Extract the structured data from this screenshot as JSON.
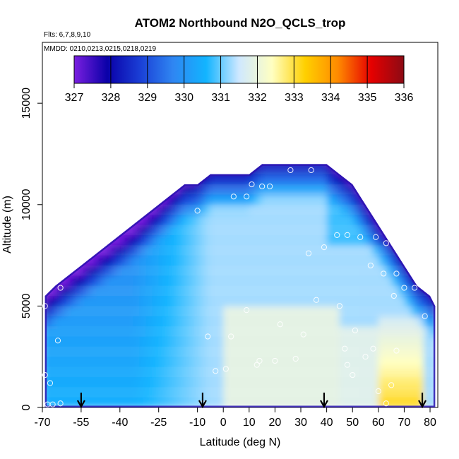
{
  "chart_data": {
    "type": "heatmap",
    "title": "ATOM2 Northbound N2O_QCLS_trop",
    "subtitle_flights": "Flts: 6,7,8,9,10",
    "subtitle_dates": "MMDD: 0210,0213,0215,0218,0219",
    "xlabel": "Latitude (deg N)",
    "ylabel": "Altitude (m)",
    "xlim": [
      -70,
      83
    ],
    "ylim": [
      0,
      18000
    ],
    "x_ticks": [
      -70,
      -55,
      -40,
      -25,
      -10,
      0,
      10,
      20,
      30,
      40,
      50,
      60,
      70,
      80
    ],
    "x_tick_labels": [
      "-70",
      "-55",
      "-40",
      "-25",
      "-10",
      "0",
      "10",
      "20",
      "30",
      "40",
      "50",
      "60",
      "70",
      "80"
    ],
    "y_ticks": [
      0,
      5000,
      10000,
      15000
    ],
    "y_tick_labels": [
      "0",
      "5000",
      "10000",
      "15000"
    ],
    "colorbar": {
      "min": 327,
      "max": 336,
      "tick_labels": [
        "327",
        "328",
        "329",
        "330",
        "331",
        "332",
        "333",
        "334",
        "335",
        "336"
      ],
      "colors": [
        "#7b1fe0",
        "#0a00a8",
        "#1a3fd6",
        "#2f86f2",
        "#12b4ff",
        "#cfe8ff",
        "#ffffc2",
        "#ffd000",
        "#ff8a00",
        "#e60000",
        "#8b0a14"
      ]
    },
    "altitude_envelope": [
      {
        "lat": -69,
        "top": 5500
      },
      {
        "lat": -65,
        "top": 6000
      },
      {
        "lat": -60,
        "top": 6500
      },
      {
        "lat": -55,
        "top": 7000
      },
      {
        "lat": -50,
        "top": 7500
      },
      {
        "lat": -45,
        "top": 8000
      },
      {
        "lat": -40,
        "top": 8500
      },
      {
        "lat": -35,
        "top": 9000
      },
      {
        "lat": -30,
        "top": 9500
      },
      {
        "lat": -25,
        "top": 10000
      },
      {
        "lat": -20,
        "top": 10500
      },
      {
        "lat": -15,
        "top": 11000
      },
      {
        "lat": -10,
        "top": 11000
      },
      {
        "lat": -5,
        "top": 11500
      },
      {
        "lat": 0,
        "top": 11500
      },
      {
        "lat": 5,
        "top": 11500
      },
      {
        "lat": 10,
        "top": 11500
      },
      {
        "lat": 15,
        "top": 12000
      },
      {
        "lat": 20,
        "top": 12000
      },
      {
        "lat": 25,
        "top": 12000
      },
      {
        "lat": 30,
        "top": 12000
      },
      {
        "lat": 35,
        "top": 12000
      },
      {
        "lat": 40,
        "top": 12000
      },
      {
        "lat": 45,
        "top": 11500
      },
      {
        "lat": 50,
        "top": 11000
      },
      {
        "lat": 55,
        "top": 10000
      },
      {
        "lat": 60,
        "top": 9000
      },
      {
        "lat": 65,
        "top": 8000
      },
      {
        "lat": 70,
        "top": 7000
      },
      {
        "lat": 75,
        "top": 6000
      },
      {
        "lat": 80,
        "top": 5500
      },
      {
        "lat": 82,
        "top": 5000
      }
    ],
    "observations": [
      {
        "lat": -69,
        "alt": 5000
      },
      {
        "lat": -69,
        "alt": 1600
      },
      {
        "lat": -67,
        "alt": 1200
      },
      {
        "lat": -68,
        "alt": 150
      },
      {
        "lat": -66,
        "alt": 150
      },
      {
        "lat": -63,
        "alt": 200
      },
      {
        "lat": -64,
        "alt": 3300
      },
      {
        "lat": -63,
        "alt": 5900
      },
      {
        "lat": -10,
        "alt": 9700
      },
      {
        "lat": -8,
        "alt": 200
      },
      {
        "lat": -6,
        "alt": 3500
      },
      {
        "lat": -3,
        "alt": 1800
      },
      {
        "lat": 1,
        "alt": 1900
      },
      {
        "lat": 3,
        "alt": 3500
      },
      {
        "lat": 4,
        "alt": 10400
      },
      {
        "lat": 9,
        "alt": 10400
      },
      {
        "lat": 9,
        "alt": 4800
      },
      {
        "lat": 11,
        "alt": 11000
      },
      {
        "lat": 15,
        "alt": 10900
      },
      {
        "lat": 18,
        "alt": 10900
      },
      {
        "lat": 22,
        "alt": 4100
      },
      {
        "lat": 20,
        "alt": 2300
      },
      {
        "lat": 13,
        "alt": 2100
      },
      {
        "lat": 14,
        "alt": 2300
      },
      {
        "lat": 26,
        "alt": 11700
      },
      {
        "lat": 34,
        "alt": 11700
      },
      {
        "lat": 33,
        "alt": 7600
      },
      {
        "lat": 28,
        "alt": 2400
      },
      {
        "lat": 31,
        "alt": 3600
      },
      {
        "lat": 36,
        "alt": 5300
      },
      {
        "lat": 39,
        "alt": 7900
      },
      {
        "lat": 44,
        "alt": 8500
      },
      {
        "lat": 48,
        "alt": 8500
      },
      {
        "lat": 53,
        "alt": 8400
      },
      {
        "lat": 50,
        "alt": 1600
      },
      {
        "lat": 48,
        "alt": 2100
      },
      {
        "lat": 45,
        "alt": 5000
      },
      {
        "lat": 47,
        "alt": 2900
      },
      {
        "lat": 51,
        "alt": 3800
      },
      {
        "lat": 55,
        "alt": 2500
      },
      {
        "lat": 58,
        "alt": 2900
      },
      {
        "lat": 57,
        "alt": 7000
      },
      {
        "lat": 59,
        "alt": 8400
      },
      {
        "lat": 63,
        "alt": 8100
      },
      {
        "lat": 62,
        "alt": 6600
      },
      {
        "lat": 66,
        "alt": 5500
      },
      {
        "lat": 67,
        "alt": 6600
      },
      {
        "lat": 70,
        "alt": 5900
      },
      {
        "lat": 74,
        "alt": 5900
      },
      {
        "lat": 78,
        "alt": 4500
      },
      {
        "lat": 60,
        "alt": 800
      },
      {
        "lat": 63,
        "alt": 200
      },
      {
        "lat": 67,
        "alt": 2800
      },
      {
        "lat": 65,
        "alt": 1100
      }
    ],
    "markers": [
      {
        "label": "arrow",
        "lat": -55
      },
      {
        "label": "arrow",
        "lat": -8
      },
      {
        "label": "arrow",
        "lat": 39
      },
      {
        "label": "arrow",
        "lat": 77
      }
    ]
  }
}
